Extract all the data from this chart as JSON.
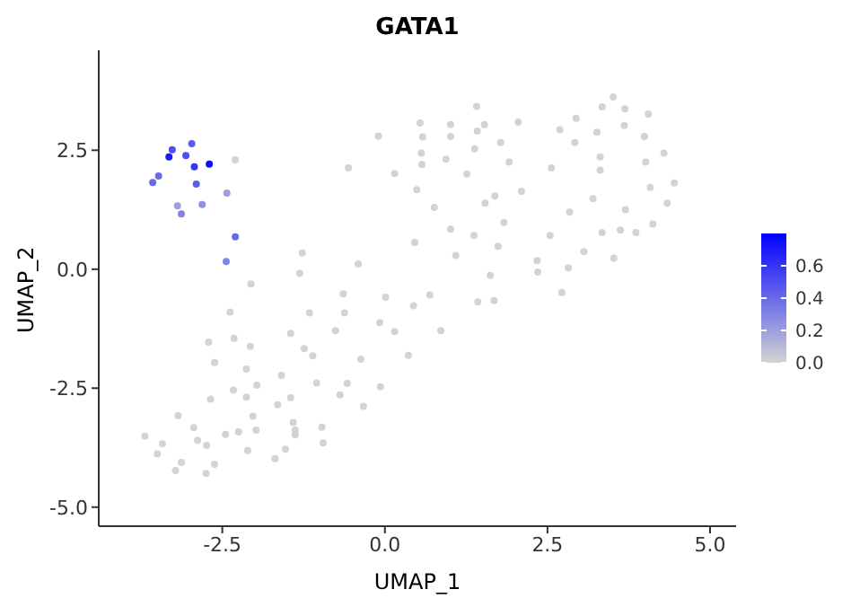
{
  "chart_data": {
    "type": "scatter",
    "title": "GATA1",
    "xlabel": "UMAP_1",
    "ylabel": "UMAP_2",
    "x": [
      -2.3,
      -1.27,
      -1.31,
      -2.06,
      -2.38,
      -0.64,
      0.01,
      0.69,
      -1.16,
      -0.62,
      0.44,
      -0.08,
      0.15,
      0.86,
      -0.76,
      -1.45,
      -2.71,
      -2.32,
      -2.07,
      -1.24,
      -1.11,
      0.36,
      -0.37,
      -2.62,
      -2.13,
      -1.59,
      -1.97,
      -1.05,
      -0.58,
      -0.07,
      -2.33,
      -0.69,
      -2.13,
      -1.45,
      -2.68,
      -1.65,
      -0.33,
      -3.18,
      -2.03,
      -1.41,
      -0.97,
      -2.94,
      -1.98,
      -2.25,
      -1.38,
      -1.38,
      -2.45,
      -3.69,
      -2.88,
      -3.42,
      -2.74,
      -0.95,
      -3.5,
      -2.11,
      -1.53,
      -1.69,
      -3.13,
      -2.62,
      -3.22,
      -2.75,
      1.41,
      3.51,
      3.34,
      3.69,
      4.05,
      2.94,
      0.54,
      1.01,
      1.53,
      2.05,
      3.68,
      -0.1,
      0.58,
      1.01,
      1.42,
      2.69,
      3.26,
      3.99,
      1.78,
      2.92,
      1.38,
      0.56,
      0.94,
      3.31,
      4.29,
      -0.56,
      0.57,
      1.91,
      2.56,
      3.31,
      4.01,
      0.15,
      1.26,
      4.45,
      0.49,
      2.1,
      4.08,
      1.69,
      1.54,
      3.2,
      4.34,
      0.76,
      2.84,
      3.7,
      1.83,
      4.12,
      1.01,
      1.37,
      2.54,
      3.34,
      3.62,
      3.86,
      0.46,
      1.74,
      3.06,
      1.09,
      3.52,
      -0.41,
      2.34,
      2.35,
      2.82,
      1.62,
      1.43,
      1.68,
      2.72,
      -2.43,
      -3.19,
      -3.13,
      -2.81,
      -2.44,
      -3.48,
      -3.57,
      -2.9,
      -2.3,
      -2.97,
      -3.27,
      -3.06,
      -2.93,
      -3.32,
      -2.7
    ],
    "values": [
      2.3,
      0.34,
      -0.09,
      -0.31,
      -0.9,
      -0.52,
      -0.59,
      -0.54,
      -0.92,
      -0.92,
      -0.77,
      -1.12,
      -1.31,
      -1.29,
      -1.29,
      -1.35,
      -1.53,
      -1.45,
      -1.62,
      -1.67,
      -1.82,
      -1.81,
      -1.89,
      -1.96,
      -2.1,
      -2.23,
      -2.44,
      -2.39,
      -2.4,
      -2.47,
      -2.54,
      -2.64,
      -2.69,
      -2.7,
      -2.73,
      -2.85,
      -2.88,
      -3.08,
      -3.09,
      -3.22,
      -3.32,
      -3.33,
      -3.38,
      -3.42,
      -3.38,
      -3.48,
      -3.47,
      -3.51,
      -3.6,
      -3.67,
      -3.7,
      -3.65,
      -3.88,
      -3.81,
      -3.78,
      -3.98,
      -4.06,
      -4.1,
      -4.23,
      -4.29,
      3.42,
      3.62,
      3.41,
      3.37,
      3.26,
      3.17,
      3.07,
      3.04,
      3.04,
      3.09,
      3.02,
      2.8,
      2.78,
      2.79,
      2.9,
      2.93,
      2.88,
      2.79,
      2.66,
      2.66,
      2.53,
      2.44,
      2.31,
      2.36,
      2.44,
      2.13,
      2.2,
      2.25,
      2.13,
      2.08,
      2.25,
      2.01,
      2.0,
      1.81,
      1.67,
      1.64,
      1.72,
      1.54,
      1.39,
      1.48,
      1.39,
      1.3,
      1.2,
      1.25,
      0.98,
      0.95,
      0.84,
      0.71,
      0.71,
      0.77,
      0.82,
      0.77,
      0.56,
      0.48,
      0.37,
      0.29,
      0.23,
      0.11,
      0.18,
      -0.06,
      0.03,
      -0.13,
      -0.69,
      -0.66,
      -0.49,
      1.6,
      1.33,
      1.16,
      1.36,
      0.16,
      1.96,
      1.82,
      1.79,
      0.68,
      2.64,
      2.51,
      2.39,
      2.15,
      2.36,
      2.21
    ],
    "cvalues": [
      0,
      0,
      0,
      0,
      0,
      0,
      0,
      0,
      0,
      0,
      0,
      0,
      0,
      0,
      0,
      0,
      0,
      0,
      0,
      0,
      0,
      0,
      0,
      0,
      0,
      0,
      0,
      0,
      0,
      0,
      0,
      0,
      0,
      0,
      0,
      0,
      0,
      0,
      0,
      0,
      0,
      0,
      0,
      0,
      0,
      0,
      0,
      0,
      0,
      0,
      0,
      0,
      0,
      0,
      0,
      0,
      0,
      0,
      0,
      0,
      0,
      0,
      0,
      0,
      0,
      0,
      0,
      0,
      0,
      0,
      0,
      0,
      0,
      0,
      0,
      0,
      0,
      0,
      0,
      0,
      0,
      0,
      0,
      0,
      0,
      0,
      0,
      0,
      0,
      0,
      0,
      0,
      0,
      0,
      0,
      0,
      0,
      0,
      0,
      0,
      0,
      0,
      0,
      0,
      0,
      0,
      0,
      0,
      0,
      0,
      0,
      0,
      0,
      0,
      0,
      0,
      0,
      0,
      0,
      0,
      0,
      0,
      0,
      0,
      0,
      0.2,
      0.2,
      0.3,
      0.25,
      0.3,
      0.4,
      0.4,
      0.45,
      0.4,
      0.45,
      0.5,
      0.5,
      0.6,
      0.7,
      0.75
    ],
    "xlim": [
      -4.4,
      5.4
    ],
    "ylim": [
      -5.4,
      4.6
    ],
    "xticks": [
      {
        "value": -2.5,
        "label": "-2.5"
      },
      {
        "value": 0,
        "label": "0.0"
      },
      {
        "value": 2.5,
        "label": "2.5"
      },
      {
        "value": 5,
        "label": "5.0"
      }
    ],
    "yticks": [
      {
        "value": -5,
        "label": "-5.0"
      },
      {
        "value": -2.5,
        "label": "-2.5"
      },
      {
        "value": 0,
        "label": "0.0"
      },
      {
        "value": 2.5,
        "label": "2.5"
      }
    ],
    "clim": [
      0,
      0.8
    ],
    "cticks": [
      {
        "value": 0,
        "label": "0.0"
      },
      {
        "value": 0.2,
        "label": "0.2"
      },
      {
        "value": 0.4,
        "label": "0.4"
      },
      {
        "value": 0.6,
        "label": "0.6"
      }
    ],
    "grid": false
  }
}
